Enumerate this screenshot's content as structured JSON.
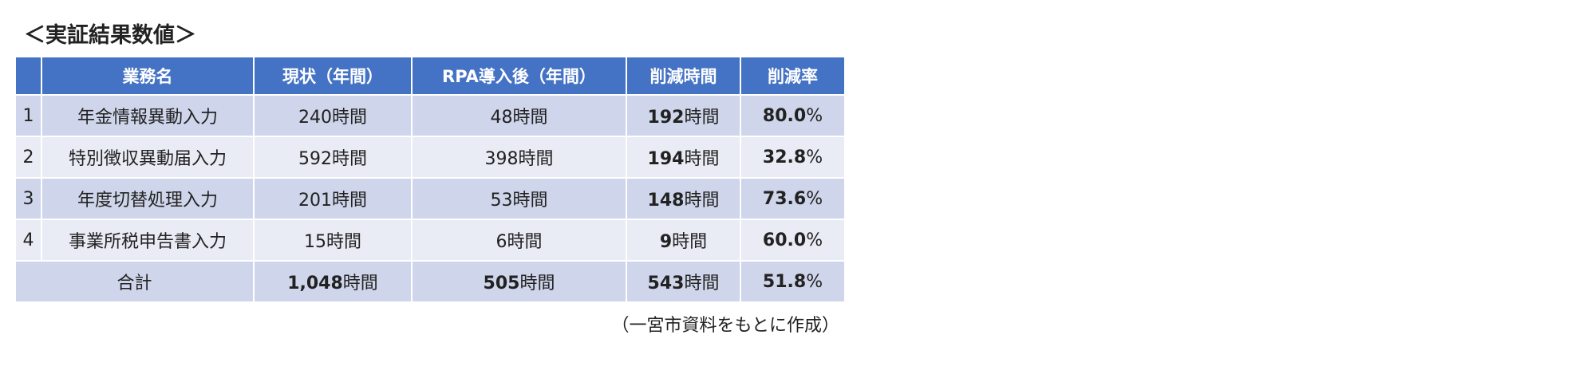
{
  "title": "＜実証結果数値＞",
  "table": {
    "header": [
      "",
      "業務名",
      "現状（年間）",
      "RPA導入後（年間）",
      "削減時間",
      "削減率"
    ],
    "rows": [
      [
        {
          "text": "1"
        },
        {
          "text": "年金情報異動入力"
        },
        {
          "text": "240時間"
        },
        {
          "text": "48時間"
        },
        {
          "num": "192",
          "unit": "時間"
        },
        {
          "num": "80.0",
          "unit": "%"
        }
      ],
      [
        {
          "text": "2"
        },
        {
          "text": "特別徴収異動届入力"
        },
        {
          "text": "592時間"
        },
        {
          "text": "398時間"
        },
        {
          "num": "194",
          "unit": "時間"
        },
        {
          "num": "32.8",
          "unit": "%"
        }
      ],
      [
        {
          "text": "3"
        },
        {
          "text": "年度切替処理入力"
        },
        {
          "text": "201時間"
        },
        {
          "text": "53時間"
        },
        {
          "num": "148",
          "unit": "時間"
        },
        {
          "num": "73.6",
          "unit": "%"
        }
      ],
      [
        {
          "text": "4"
        },
        {
          "text": "事業所税申告書入力"
        },
        {
          "text": "15時間"
        },
        {
          "text": "6時間"
        },
        {
          "num": "9",
          "unit": "時間"
        },
        {
          "num": "60.0",
          "unit": "%"
        }
      ]
    ],
    "total": [
      {
        "text": "合計"
      },
      {
        "num": "1,048",
        "unit": "時間"
      },
      {
        "num": "505",
        "unit": "時間"
      },
      {
        "num": "543",
        "unit": "時間"
      },
      {
        "num": "51.8",
        "unit": "%"
      }
    ]
  },
  "source": "（一宮市資料をもとに作成）"
}
